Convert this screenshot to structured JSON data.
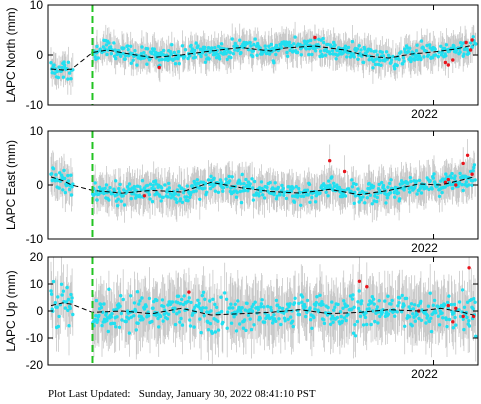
{
  "footer": {
    "label": "Plot Last Updated:",
    "value": "Sunday, January 30, 2022 08:41:10 PST"
  },
  "colors": {
    "point": "#22dff0",
    "outlier": "#e8141c",
    "errorbar": "#c8c8c8",
    "trend": "#000000",
    "event_line": "#22c322"
  },
  "chart_data": [
    {
      "type": "scatter",
      "ylabel": "LAPC North (mm)",
      "ylim": [
        -10,
        10
      ],
      "yticks": [
        -10,
        0,
        10
      ],
      "xlim": [
        2019.4,
        2022.3
      ],
      "xtick_label": "2022",
      "xtick_value": 2022.0,
      "event_line_x": 2019.7,
      "gap": [
        2019.57,
        2019.7
      ],
      "error_halfwidth": 2.6,
      "trend_x": [
        2019.42,
        2019.5,
        2019.56,
        2019.7,
        2019.8,
        2019.95,
        2020.1,
        2020.3,
        2020.5,
        2020.7,
        2020.9,
        2021.0,
        2021.2,
        2021.4,
        2021.55,
        2021.7,
        2021.85,
        2022.0,
        2022.15,
        2022.27
      ],
      "trend_y": [
        -2.8,
        -3.0,
        -2.8,
        0.5,
        1.0,
        0.2,
        -0.5,
        0.0,
        0.8,
        1.5,
        0.8,
        1.4,
        1.8,
        1.0,
        -0.2,
        -0.6,
        0.2,
        0.6,
        1.2,
        2.0
      ],
      "noise": 1.3,
      "outliers": [
        [
          2020.15,
          -2.5
        ],
        [
          2021.2,
          3.5
        ],
        [
          2022.08,
          -1.5
        ],
        [
          2022.1,
          -2.0
        ],
        [
          2022.13,
          -1.0
        ],
        [
          2022.22,
          2.5
        ],
        [
          2022.25,
          1.0
        ],
        [
          2022.26,
          3.0
        ]
      ]
    },
    {
      "type": "scatter",
      "ylabel": "LAPC East (mm)",
      "ylim": [
        -10,
        10
      ],
      "yticks": [
        -10,
        0,
        10
      ],
      "xlim": [
        2019.4,
        2022.3
      ],
      "xtick_label": "2022",
      "xtick_value": 2022.0,
      "event_line_x": 2019.7,
      "gap": [
        2019.57,
        2019.7
      ],
      "error_halfwidth": 3.0,
      "trend_x": [
        2019.42,
        2019.5,
        2019.56,
        2019.7,
        2019.9,
        2020.1,
        2020.3,
        2020.5,
        2020.7,
        2020.9,
        2021.1,
        2021.3,
        2021.5,
        2021.7,
        2021.9,
        2022.05,
        2022.2,
        2022.27
      ],
      "trend_y": [
        1.5,
        0.8,
        0.0,
        -1.0,
        -1.5,
        -1.0,
        -1.3,
        0.5,
        -0.5,
        -1.2,
        -1.5,
        -0.8,
        -1.8,
        -1.0,
        0.2,
        0.0,
        1.0,
        1.5
      ],
      "noise": 1.4,
      "outliers": [
        [
          2020.05,
          -2.0
        ],
        [
          2021.3,
          4.5
        ],
        [
          2021.4,
          2.5
        ],
        [
          2022.08,
          0.5
        ],
        [
          2022.1,
          1.0
        ],
        [
          2022.15,
          0.0
        ],
        [
          2022.2,
          4.0
        ],
        [
          2022.23,
          5.5
        ],
        [
          2022.26,
          2.0
        ]
      ]
    },
    {
      "type": "scatter",
      "ylabel": "LAPC Up (mm)",
      "ylim": [
        -20,
        20
      ],
      "yticks": [
        -20,
        -10,
        0,
        10,
        20
      ],
      "xlim": [
        2019.4,
        2022.3
      ],
      "xtick_label": "2022",
      "xtick_value": 2022.0,
      "event_line_x": 2019.7,
      "gap": [
        2019.57,
        2019.7
      ],
      "error_halfwidth": 9.0,
      "trend_x": [
        2019.42,
        2019.5,
        2019.56,
        2019.7,
        2019.9,
        2020.1,
        2020.3,
        2020.5,
        2020.7,
        2020.9,
        2021.1,
        2021.3,
        2021.5,
        2021.7,
        2021.9,
        2022.05,
        2022.2,
        2022.27
      ],
      "trend_y": [
        2.0,
        3.0,
        2.5,
        -0.5,
        0.0,
        -1.0,
        1.0,
        -1.5,
        -1.0,
        -0.5,
        0.5,
        -1.0,
        -0.5,
        0.5,
        0.0,
        1.0,
        -0.5,
        -1.5
      ],
      "noise": 4.8,
      "outliers": [
        [
          2020.35,
          7.0
        ],
        [
          2021.5,
          11.0
        ],
        [
          2021.55,
          9.0
        ],
        [
          2021.9,
          0.0
        ],
        [
          2022.1,
          2.0
        ],
        [
          2022.13,
          -4.0
        ],
        [
          2022.15,
          1.0
        ],
        [
          2022.2,
          -2.0
        ],
        [
          2022.24,
          16.0
        ],
        [
          2022.27,
          -2.0
        ]
      ]
    }
  ]
}
